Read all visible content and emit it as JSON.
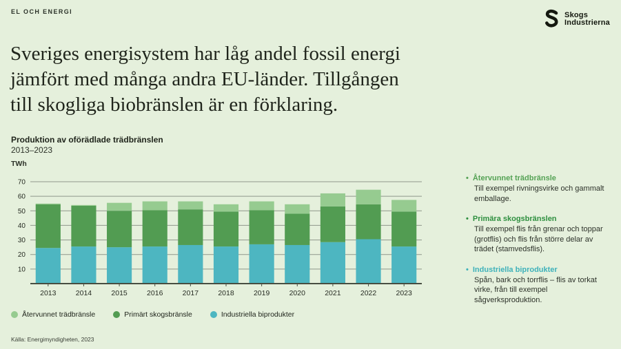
{
  "page": {
    "background": "#e5f0dc"
  },
  "header": {
    "eyebrow": "EL OCH ENERGI",
    "logo": {
      "line1": "Skogs",
      "line2": "Industrierna"
    }
  },
  "headline": {
    "lines": [
      "Sveriges energisystem har låg andel fossil energi",
      "jämfört med många andra EU-länder. Tillgången",
      "till skogliga biobränslen är en förklaring."
    ]
  },
  "chart": {
    "title": "Produktion av oförädlade trädbränslen",
    "subtitle": "2013–2023",
    "unit": "TWh",
    "source": "Källa: Energimyndigheten, 2023"
  },
  "chart_data": {
    "type": "bar",
    "stacked": true,
    "title": "Produktion av oförädlade trädbränslen 2013–2023",
    "ylabel": "TWh",
    "xlabel": "",
    "ylim": [
      0,
      70
    ],
    "ytick_step": 10,
    "grid": true,
    "legend_position": "bottom",
    "categories": [
      "2013",
      "2014",
      "2015",
      "2016",
      "2017",
      "2018",
      "2019",
      "2020",
      "2021",
      "2022",
      "2023"
    ],
    "series": [
      {
        "name": "Industriella biprodukter",
        "color": "#4db6c1",
        "values": [
          24.5,
          25.5,
          25,
          25.5,
          26.5,
          25.5,
          27,
          26.5,
          28.5,
          30.5,
          25.5
        ]
      },
      {
        "name": "Primärt skogsbränsle",
        "color": "#529c52",
        "values": [
          30,
          28,
          25,
          25,
          24.5,
          24,
          23.5,
          21.5,
          24.5,
          24,
          24
        ]
      },
      {
        "name": "Återvunnet trädbränsle",
        "color": "#96cb90",
        "values": [
          0.5,
          0.5,
          5.5,
          6,
          5.5,
          5,
          6,
          6.5,
          9,
          10,
          8
        ]
      }
    ],
    "colors": {
      "gridline": "#8e968a",
      "axis": "#474d41",
      "tick_text": "#262b22"
    }
  },
  "sidebar": {
    "items": [
      {
        "title": "Återvunnet trädbränsle",
        "color": "#55a255",
        "body": "Till exempel rivningsvirke och gammalt emballage."
      },
      {
        "title": "Primära skogsbränslen",
        "color": "#2e8f3f",
        "body": "Till exempel flis från grenar och toppar (grotflis) och flis från större delar av trädet (stamvedsflis)."
      },
      {
        "title": "Industriella biprodukter",
        "color": "#3eb1ba",
        "body": "Spån, bark och torrflis – flis av torkat virke, från till exempel sågverksproduktion."
      }
    ]
  }
}
